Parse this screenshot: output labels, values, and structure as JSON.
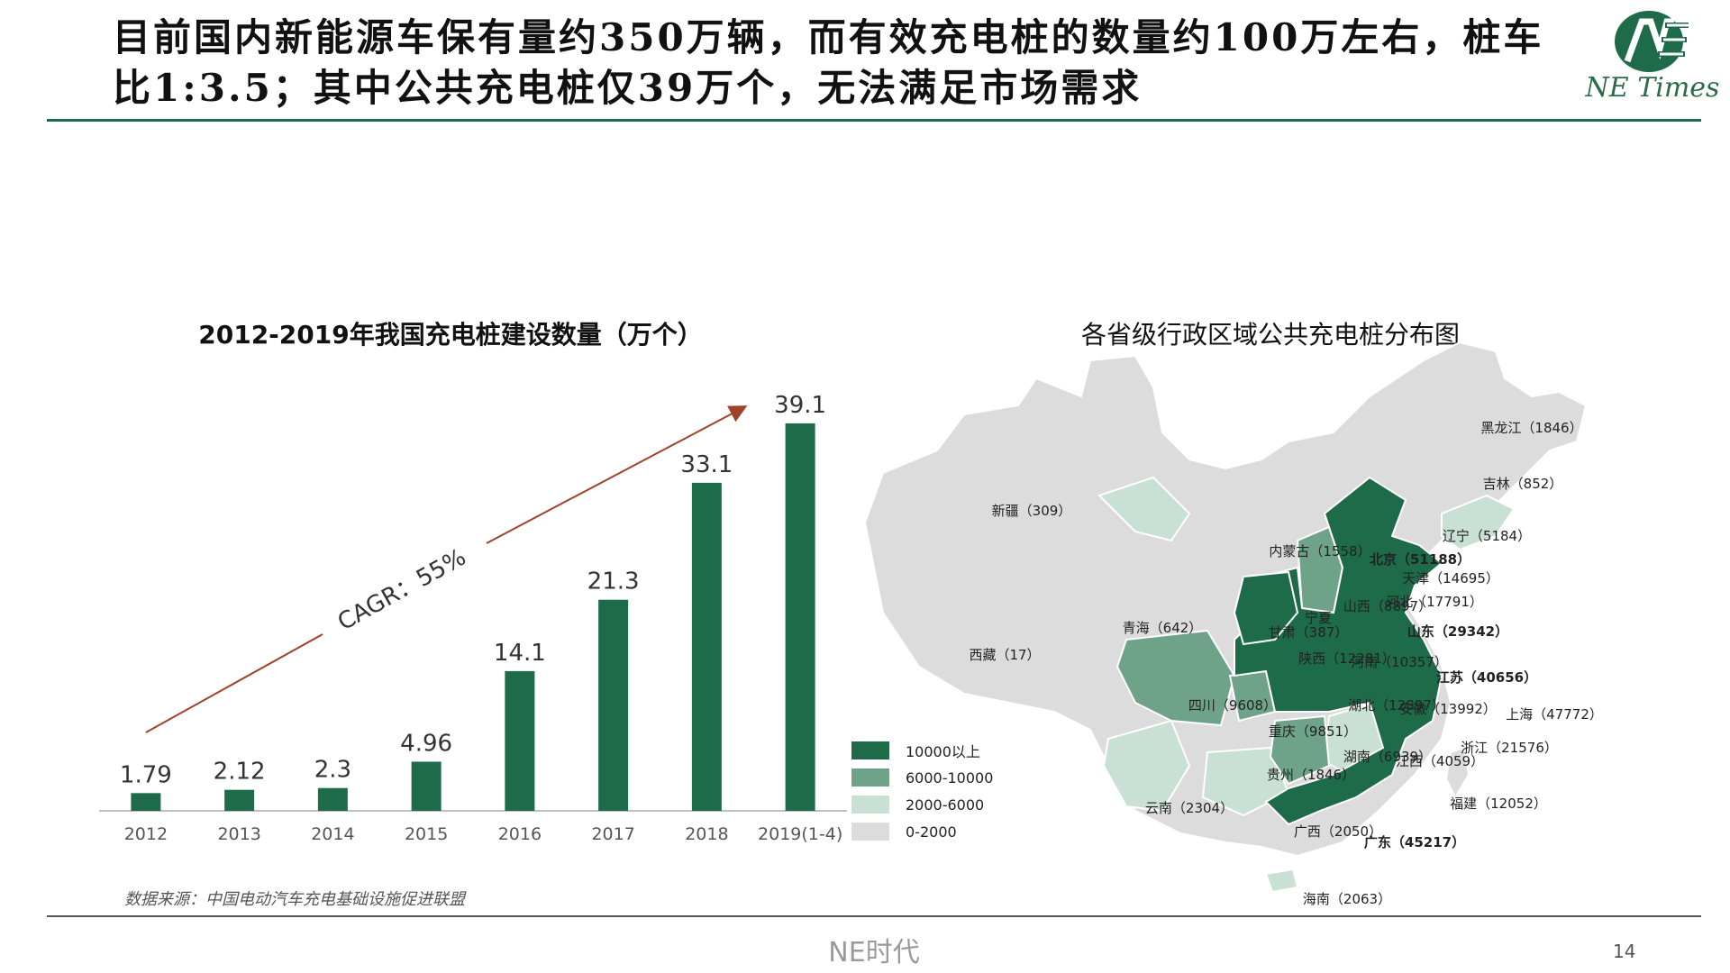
{
  "title": "目前国内新能源车保有量约350万辆，而有效充电桩的数量约100万左右，桩车比1:3.5；其中公共充电桩仅39万个，无法满足市场需求",
  "logo_text": "NE Times",
  "chart_title": "2012-2019年我国充电桩建设数量（万个）",
  "map_title": "各省级行政区域公共充电桩分布图",
  "source": "数据来源：中国电动汽车充电基础设施促进联盟",
  "footer": "NE时代",
  "page_number": "14",
  "colors": {
    "dark_green": "#1e6b4a",
    "mid_green": "#6fa389",
    "light_green": "#c9e0d4",
    "gray": "#dcdcdc",
    "arrow": "#a0422a"
  },
  "chart_data": {
    "type": "bar",
    "categories": [
      "2012",
      "2013",
      "2014",
      "2015",
      "2016",
      "2017",
      "2018",
      "2019(1-4)"
    ],
    "values": [
      1.79,
      2.12,
      2.3,
      4.96,
      14.1,
      21.3,
      33.1,
      39.1
    ],
    "labels": [
      "1.79",
      "2.12",
      "2.3",
      "4.96",
      "14.1",
      "21.3",
      "33.1",
      "39.1"
    ],
    "ylim": [
      0,
      40
    ],
    "grid": false,
    "annotation": "CAGR：55%"
  },
  "map": {
    "legend": [
      {
        "label": "10000以上",
        "color": "#1e6b4a"
      },
      {
        "label": "6000-10000",
        "color": "#6fa389"
      },
      {
        "label": "2000-6000",
        "color": "#c9e0d4"
      },
      {
        "label": "0-2000",
        "color": "#dcdcdc"
      }
    ],
    "provinces": [
      {
        "name": "黑龙江",
        "value": "1846",
        "label": "黑龙江（1846）",
        "tier": 4
      },
      {
        "name": "吉林",
        "value": "852",
        "label": "吉林（852）",
        "tier": 4
      },
      {
        "name": "辽宁",
        "value": "5184",
        "label": "辽宁（5184）",
        "tier": 3
      },
      {
        "name": "新疆",
        "value": "309",
        "label": "新疆（309）",
        "tier": 4
      },
      {
        "name": "内蒙古",
        "value": "1558",
        "label": "内蒙古（1558）",
        "tier": 4
      },
      {
        "name": "北京",
        "value": "51188",
        "label": "北京（51188）",
        "tier": 1
      },
      {
        "name": "天津",
        "value": "14695",
        "label": "天津（14695）",
        "tier": 1
      },
      {
        "name": "河北",
        "value": "17791",
        "label": "河北（17791）",
        "tier": 1
      },
      {
        "name": "山西",
        "value": "8897",
        "label": "山西（8897）",
        "tier": 2
      },
      {
        "name": "山东",
        "value": "29342",
        "label": "山东（29342）",
        "tier": 1
      },
      {
        "name": "宁夏",
        "value": "",
        "label": "宁夏",
        "tier": 4
      },
      {
        "name": "甘肃",
        "value": "387",
        "label": "甘肃（387）",
        "tier": 4
      },
      {
        "name": "青海",
        "value": "642",
        "label": "青海（642）",
        "tier": 4
      },
      {
        "name": "陕西",
        "value": "12281",
        "label": "陕西（12281）",
        "tier": 1
      },
      {
        "name": "河南",
        "value": "10357",
        "label": "河南（10357）",
        "tier": 1
      },
      {
        "name": "江苏",
        "value": "40656",
        "label": "江苏（40656）",
        "tier": 1
      },
      {
        "name": "西藏",
        "value": "17",
        "label": "西藏（17）",
        "tier": 4
      },
      {
        "name": "四川",
        "value": "9608",
        "label": "四川（9608）",
        "tier": 2
      },
      {
        "name": "湖北",
        "value": "12897",
        "label": "湖北（12897）",
        "tier": 1
      },
      {
        "name": "安徽",
        "value": "13992",
        "label": "安徽（13992）",
        "tier": 1
      },
      {
        "name": "上海",
        "value": "47772",
        "label": "上海（47772）",
        "tier": 1
      },
      {
        "name": "重庆",
        "value": "9851",
        "label": "重庆（9851）",
        "tier": 2
      },
      {
        "name": "浙江",
        "value": "21576",
        "label": "浙江（21576）",
        "tier": 1
      },
      {
        "name": "贵州",
        "value": "1846",
        "label": "贵州（1846）",
        "tier": 4
      },
      {
        "name": "湖南",
        "value": "6939",
        "label": "湖南（6939）",
        "tier": 2
      },
      {
        "name": "江西",
        "value": "4059",
        "label": "江西（4059）",
        "tier": 3
      },
      {
        "name": "云南",
        "value": "2304",
        "label": "云南（2304）",
        "tier": 3
      },
      {
        "name": "福建",
        "value": "12052",
        "label": "福建（12052）",
        "tier": 1
      },
      {
        "name": "广西",
        "value": "2050",
        "label": "广西（2050）",
        "tier": 3
      },
      {
        "name": "广东",
        "value": "45217",
        "label": "广东（45217）",
        "tier": 1
      },
      {
        "name": "海南",
        "value": "2063",
        "label": "海南（2063）",
        "tier": 3
      },
      {
        "name": "台湾",
        "value": "",
        "label": "",
        "tier": 4
      }
    ]
  }
}
